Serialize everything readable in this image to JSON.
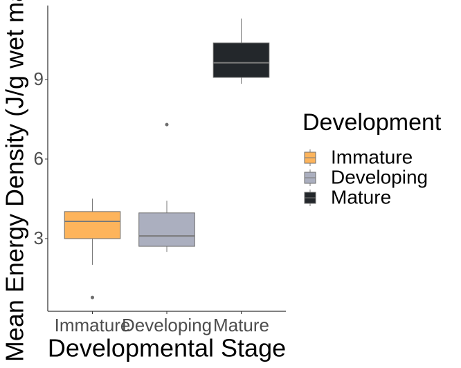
{
  "chart_data": {
    "type": "box",
    "x_label": "Developmental Stage",
    "y_label": "Mean Energy Density (J/g wet mass)",
    "categories": [
      "Immature",
      "Developing",
      "Mature"
    ],
    "legend_title": "Development",
    "series": [
      {
        "name": "Immature",
        "color": "#fdb45c",
        "min": 2.01,
        "q1": 3.0,
        "median": 3.65,
        "q3": 4.02,
        "max": 4.51,
        "outliers": [
          0.78
        ]
      },
      {
        "name": "Developing",
        "color": "#abafbf",
        "min": 2.5,
        "q1": 2.71,
        "median": 3.1,
        "q3": 3.97,
        "max": 4.43,
        "outliers": [
          7.3
        ]
      },
      {
        "name": "Mature",
        "color": "#23272b",
        "min": 8.84,
        "q1": 9.08,
        "median": 9.63,
        "q3": 10.38,
        "max": 11.3,
        "outliers": []
      }
    ],
    "ylim": [
      0.26,
      11.79
    ],
    "yticks": [
      3,
      6,
      9
    ]
  }
}
